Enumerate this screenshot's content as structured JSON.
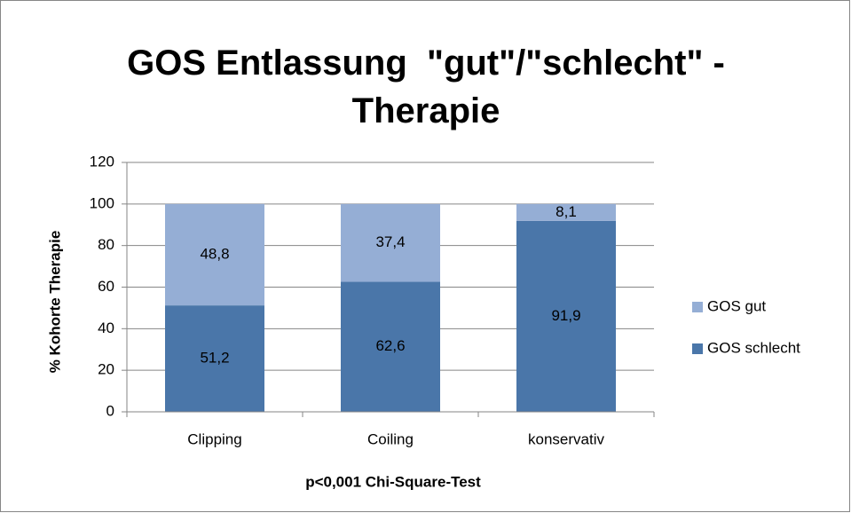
{
  "chart_data": {
    "type": "stacked_bar",
    "title": "GOS Entlassung  \"gut\"/\"schlecht\" - Therapie",
    "xlabel": "p<0,001 Chi-Square-Test",
    "ylabel": "% Kohorte Therapie",
    "categories": [
      "Clipping",
      "Coiling",
      "konservativ"
    ],
    "series": [
      {
        "name": "GOS schlecht",
        "color": "#4a76a9",
        "values": [
          51.2,
          62.6,
          91.9
        ],
        "value_labels": [
          "51,2",
          "62,6",
          "91,9"
        ]
      },
      {
        "name": "GOS gut",
        "color": "#95aed5",
        "values": [
          48.8,
          37.4,
          8.1
        ],
        "value_labels": [
          "48,8",
          "37,4",
          "8,1"
        ]
      }
    ],
    "ylim": [
      0,
      120
    ],
    "yticks": [
      0,
      20,
      40,
      60,
      80,
      100,
      120
    ],
    "grid": true,
    "legend": "right"
  }
}
